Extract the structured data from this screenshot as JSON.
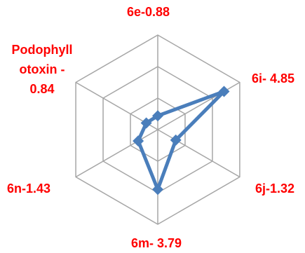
{
  "chart_data": {
    "type": "radar",
    "title": "",
    "categories": [
      "6e-0.88",
      "6i- 4.85",
      "6j-1.32",
      "6m- 3.79",
      "6n-1.43",
      "Podophyllotoxin - 0.84"
    ],
    "series": [
      {
        "values": [
          0.88,
          4.85,
          1.32,
          3.79,
          1.43,
          0.84
        ]
      }
    ],
    "rmax": 6,
    "rings": 3,
    "grid": true,
    "legend": "none",
    "colors": {
      "series": "#4A7EBB",
      "label": "#FF0000",
      "grid": "#A6A6A6"
    },
    "label_lines": {
      "podophyllotoxin": [
        "Podophyll",
        "otoxin -",
        "0.84"
      ]
    }
  }
}
